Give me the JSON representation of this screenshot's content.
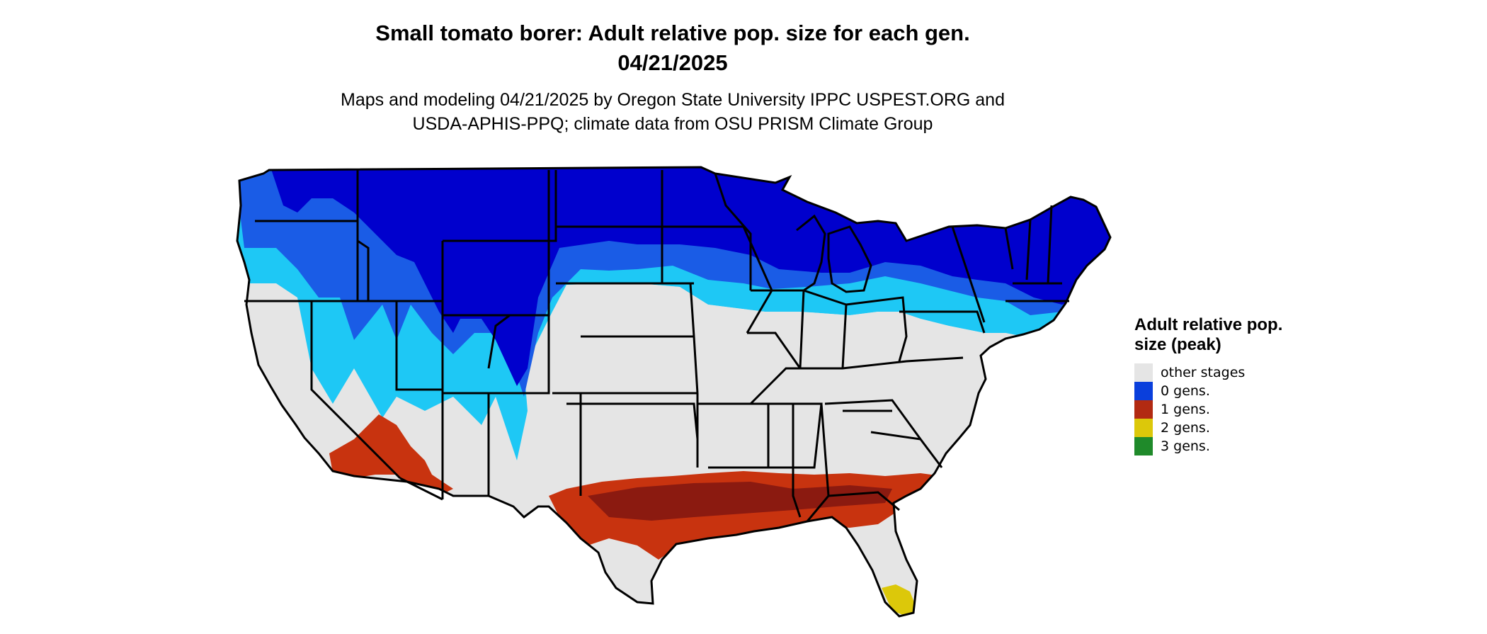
{
  "title_line1": "Small tomato borer: Adult relative pop. size for each gen.",
  "title_line2": "04/21/2025",
  "subtitle_line1": "Maps and modeling 04/21/2025 by Oregon State University IPPC USPEST.ORG and",
  "subtitle_line2": "USDA-APHIS-PPQ; climate data from OSU PRISM Climate Group",
  "legend": {
    "title": "Adult relative pop. size (peak)",
    "items": [
      {
        "label": "other stages",
        "color": "#e5e5e5"
      },
      {
        "label": "0 gens.",
        "color": "#0a3fdc"
      },
      {
        "label": "1 gens.",
        "color": "#b22a12"
      },
      {
        "label": "2 gens.",
        "color": "#dcc80a"
      },
      {
        "label": "3 gens.",
        "color": "#1f8a2a"
      }
    ]
  },
  "map_colors": {
    "other": "#e5e5e5",
    "deep_blue": "#0000cd",
    "mid_blue": "#1a5ce6",
    "light_blue": "#1ec8f5",
    "red_dark": "#8b1a10",
    "red": "#c8330f",
    "yellow": "#dcc80a",
    "border": "#000000"
  }
}
